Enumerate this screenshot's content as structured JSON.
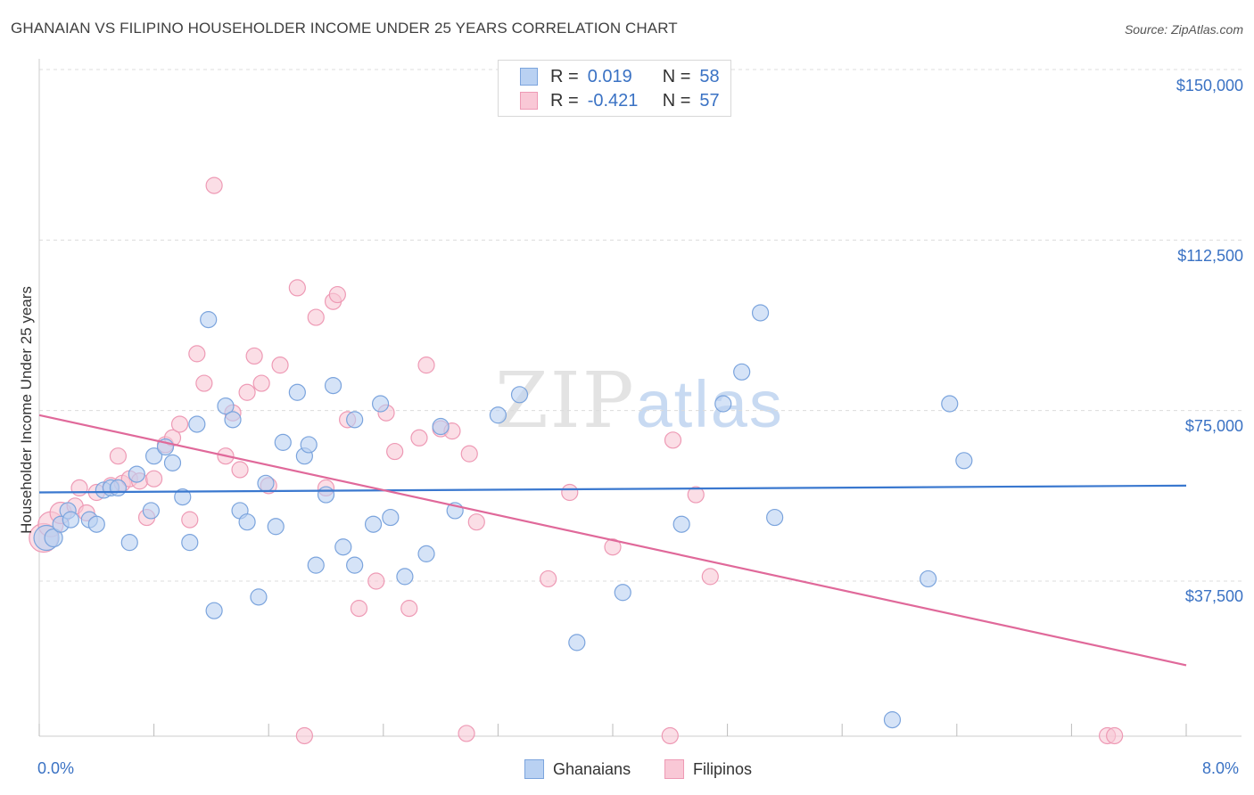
{
  "title": "GHANAIAN VS FILIPINO HOUSEHOLDER INCOME UNDER 25 YEARS CORRELATION CHART",
  "source": "Source: ZipAtlas.com",
  "watermark": {
    "zip": "ZIP",
    "atlas": "atlas"
  },
  "legend": {
    "rows": [
      {
        "r_label": "R =",
        "r_value": "0.019",
        "n_label": "N =",
        "n_value": "58"
      },
      {
        "r_label": "R =",
        "r_value": "-0.421",
        "n_label": "N =",
        "n_value": "57"
      }
    ]
  },
  "bottom_legend": {
    "ghanaians": "Ghanaians",
    "filipinos": "Filipinos"
  },
  "x_labels": {
    "min": "0.0%",
    "max": "8.0%"
  },
  "y_labels": [
    "$150,000",
    "$112,500",
    "$75,000",
    "$37,500"
  ],
  "colors": {
    "blue_fill": "#b9d1f2",
    "blue_stroke": "#7ba4dd",
    "blue_line": "#3a78cf",
    "pink_fill": "#f9c8d6",
    "pink_stroke": "#ee9ab5",
    "pink_line": "#e0699a",
    "accent_text": "#3a72c4"
  },
  "chart_data": {
    "type": "scatter",
    "title": "GHANAIAN VS FILIPINO HOUSEHOLDER INCOME UNDER 25 YEARS CORRELATION CHART",
    "xlabel": "",
    "ylabel": "Householder Income Under 25 years",
    "xlim": [
      0,
      8
    ],
    "ylim": [
      2000,
      155000
    ],
    "y_ticks": [
      37500,
      75000,
      112500,
      150000
    ],
    "x_ticks": [
      0,
      0.8,
      1.6,
      2.4,
      3.2,
      4.0,
      4.8,
      5.6,
      6.4,
      7.2,
      8.0
    ],
    "grid": true,
    "series": [
      {
        "name": "Ghanaians",
        "r": 0.019,
        "n": 58,
        "trend": {
          "x0": 0.0,
          "y0": 57000,
          "x1": 8.0,
          "y1": 58500
        },
        "points": [
          [
            0.05,
            47000,
            14
          ],
          [
            0.1,
            47000,
            10
          ],
          [
            0.15,
            50000,
            9
          ],
          [
            0.2,
            53000,
            9
          ],
          [
            0.22,
            51000,
            9
          ],
          [
            0.35,
            51000,
            9
          ],
          [
            0.4,
            50000,
            9
          ],
          [
            0.45,
            57500,
            9
          ],
          [
            0.5,
            58000,
            9
          ],
          [
            0.55,
            58000,
            9
          ],
          [
            0.63,
            46000,
            9
          ],
          [
            0.68,
            61000,
            9
          ],
          [
            0.78,
            53000,
            9
          ],
          [
            0.8,
            65000,
            9
          ],
          [
            0.88,
            67000,
            9
          ],
          [
            0.93,
            63500,
            9
          ],
          [
            1.0,
            56000,
            9
          ],
          [
            1.05,
            46000,
            9
          ],
          [
            1.1,
            72000,
            9
          ],
          [
            1.18,
            95000,
            9
          ],
          [
            1.22,
            31000,
            9
          ],
          [
            1.3,
            76000,
            9
          ],
          [
            1.35,
            73000,
            9
          ],
          [
            1.4,
            53000,
            9
          ],
          [
            1.45,
            50500,
            9
          ],
          [
            1.53,
            34000,
            9
          ],
          [
            1.58,
            59000,
            9
          ],
          [
            1.65,
            49500,
            9
          ],
          [
            1.7,
            68000,
            9
          ],
          [
            1.8,
            79000,
            9
          ],
          [
            1.85,
            65000,
            9
          ],
          [
            1.88,
            67500,
            9
          ],
          [
            1.93,
            41000,
            9
          ],
          [
            2.0,
            56500,
            9
          ],
          [
            2.05,
            80500,
            9
          ],
          [
            2.12,
            45000,
            9
          ],
          [
            2.2,
            73000,
            9
          ],
          [
            2.2,
            41000,
            9
          ],
          [
            2.33,
            50000,
            9
          ],
          [
            2.38,
            76500,
            9
          ],
          [
            2.45,
            51500,
            9
          ],
          [
            2.55,
            38500,
            9
          ],
          [
            2.7,
            43500,
            9
          ],
          [
            2.8,
            71500,
            9
          ],
          [
            2.9,
            53000,
            9
          ],
          [
            3.2,
            74000,
            9
          ],
          [
            3.35,
            78500,
            9
          ],
          [
            3.75,
            24000,
            9
          ],
          [
            4.07,
            35000,
            9
          ],
          [
            4.48,
            50000,
            9
          ],
          [
            4.77,
            76500,
            9
          ],
          [
            4.9,
            83500,
            9
          ],
          [
            5.03,
            96500,
            9
          ],
          [
            5.13,
            51500,
            9
          ],
          [
            5.95,
            7000,
            9
          ],
          [
            6.2,
            38000,
            9
          ],
          [
            6.35,
            76500,
            9
          ],
          [
            6.45,
            64000,
            9
          ]
        ]
      },
      {
        "name": "Filipinos",
        "r": -0.421,
        "n": 57,
        "trend": {
          "x0": 0.0,
          "y0": 74000,
          "x1": 8.0,
          "y1": 19000
        },
        "points": [
          [
            0.03,
            47000,
            16
          ],
          [
            0.08,
            50000,
            14
          ],
          [
            0.15,
            52500,
            12
          ],
          [
            0.25,
            54000,
            9
          ],
          [
            0.28,
            58000,
            9
          ],
          [
            0.33,
            52500,
            9
          ],
          [
            0.4,
            57000,
            9
          ],
          [
            0.5,
            58500,
            9
          ],
          [
            0.55,
            65000,
            9
          ],
          [
            0.58,
            59000,
            9
          ],
          [
            0.63,
            60000,
            9
          ],
          [
            0.7,
            59500,
            9
          ],
          [
            0.75,
            51500,
            9
          ],
          [
            0.8,
            60000,
            9
          ],
          [
            0.88,
            67500,
            9
          ],
          [
            0.93,
            69000,
            9
          ],
          [
            0.98,
            72000,
            9
          ],
          [
            1.05,
            51000,
            9
          ],
          [
            1.1,
            87500,
            9
          ],
          [
            1.15,
            81000,
            9
          ],
          [
            1.22,
            124500,
            9
          ],
          [
            1.3,
            65000,
            9
          ],
          [
            1.35,
            74500,
            9
          ],
          [
            1.4,
            62000,
            9
          ],
          [
            1.45,
            79000,
            9
          ],
          [
            1.5,
            87000,
            9
          ],
          [
            1.55,
            81000,
            9
          ],
          [
            1.6,
            58500,
            9
          ],
          [
            1.68,
            85000,
            9
          ],
          [
            1.8,
            102000,
            9
          ],
          [
            1.85,
            3500,
            9
          ],
          [
            1.93,
            95500,
            9
          ],
          [
            2.0,
            58000,
            9
          ],
          [
            2.05,
            99000,
            9
          ],
          [
            2.08,
            100500,
            9
          ],
          [
            2.15,
            73000,
            9
          ],
          [
            2.23,
            31500,
            9
          ],
          [
            2.35,
            37500,
            9
          ],
          [
            2.42,
            74500,
            9
          ],
          [
            2.48,
            66000,
            9
          ],
          [
            2.58,
            31500,
            9
          ],
          [
            2.65,
            69000,
            9
          ],
          [
            2.7,
            85000,
            9
          ],
          [
            2.8,
            71000,
            9
          ],
          [
            2.88,
            70500,
            9
          ],
          [
            2.98,
            4000,
            9
          ],
          [
            3.0,
            65500,
            9
          ],
          [
            3.05,
            50500,
            9
          ],
          [
            3.55,
            38000,
            9
          ],
          [
            3.7,
            57000,
            9
          ],
          [
            4.0,
            45000,
            9
          ],
          [
            4.4,
            3500,
            9
          ],
          [
            4.42,
            68500,
            9
          ],
          [
            4.58,
            56500,
            9
          ],
          [
            4.68,
            38500,
            9
          ],
          [
            7.45,
            3500,
            9
          ],
          [
            7.5,
            3500,
            9
          ]
        ]
      }
    ]
  }
}
